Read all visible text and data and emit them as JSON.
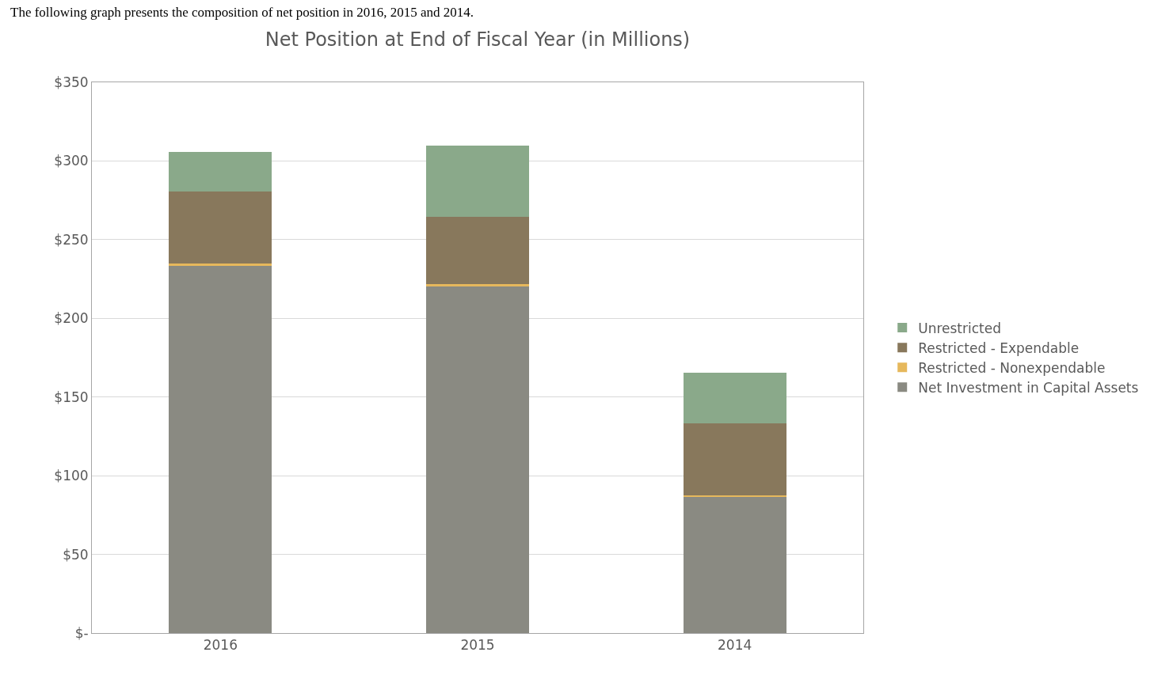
{
  "chart_data": {
    "type": "bar",
    "stacked": true,
    "title": "Net Position at End of Fiscal Year (in Millions)",
    "annotations": [
      "The following graph presents the composition of net position in 2016, 2015 and 2014."
    ],
    "categories": [
      "2016",
      "2015",
      "2014"
    ],
    "series": [
      {
        "name": "Net Investment in Capital Assets",
        "color": "#8a8a82",
        "values": [
          233.5,
          220.5,
          86.7
        ]
      },
      {
        "name": "Restricted - Nonexpendable",
        "color": "#e6b85c",
        "values": [
          1.2,
          1.2,
          0.8
        ]
      },
      {
        "name": "Restricted - Expendable",
        "color": "#88785c",
        "values": [
          46,
          43,
          46
        ]
      },
      {
        "name": "Unrestricted",
        "color": "#8aa98a",
        "values": [
          25,
          45,
          32
        ]
      }
    ],
    "ylim": [
      0,
      350
    ],
    "yticks": [
      {
        "value": 0,
        "label": "$-"
      },
      {
        "value": 50,
        "label": "$50"
      },
      {
        "value": 100,
        "label": "$100"
      },
      {
        "value": 150,
        "label": "$150"
      },
      {
        "value": 200,
        "label": "$200"
      },
      {
        "value": 250,
        "label": "$250"
      },
      {
        "value": 300,
        "label": "$300"
      },
      {
        "value": 350,
        "label": "$350"
      }
    ],
    "grid": "y",
    "legend": "right"
  }
}
